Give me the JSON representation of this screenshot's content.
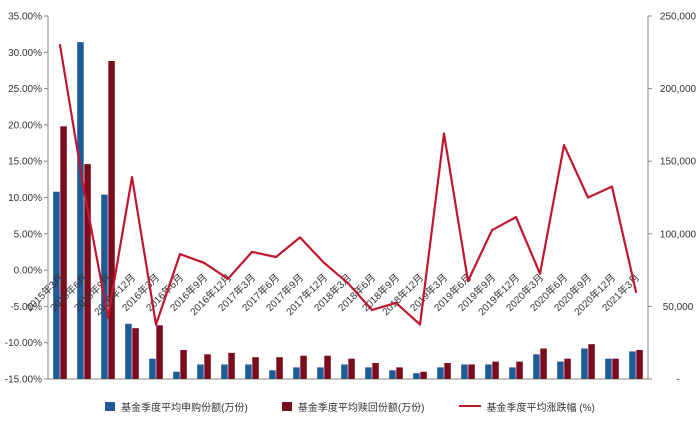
{
  "chart_data": {
    "type": "bar",
    "categories": [
      "2015年3月",
      "2015年6月",
      "2015年9月",
      "2015年12月",
      "2016年3月",
      "2016年6月",
      "2016年9月",
      "2016年12月",
      "2017年3月",
      "2017年6月",
      "2017年9月",
      "2017年12月",
      "2018年3月",
      "2018年6月",
      "2018年9月",
      "2018年12月",
      "2019年3月",
      "2019年6月",
      "2019年9月",
      "2019年12月",
      "2020年3月",
      "2020年6月",
      "2020年9月",
      "2020年12月",
      "2021年3月"
    ],
    "series": [
      {
        "name": "基金季度平均申购份额(万份)",
        "axis": "right",
        "color": "#1F5A96",
        "values": [
          129000,
          232000,
          127000,
          38000,
          14000,
          5000,
          10000,
          10000,
          10000,
          6000,
          8000,
          8000,
          10000,
          8000,
          6000,
          4000,
          8000,
          10000,
          10000,
          8000,
          17000,
          12000,
          21000,
          14000,
          19000
        ]
      },
      {
        "name": "基金季度平均赎回份额(万份)",
        "axis": "right",
        "color": "#7A0C1E",
        "values": [
          174000,
          148000,
          219000,
          35000,
          37000,
          20000,
          17000,
          18000,
          15000,
          15000,
          16000,
          16000,
          14000,
          11000,
          8000,
          5000,
          11000,
          10000,
          12000,
          12000,
          21000,
          14000,
          24000,
          14000,
          20000
        ]
      },
      {
        "name": "基金季度平均涨跌幅 (%)",
        "axis": "left",
        "type": "line",
        "color": "#C0172F",
        "values": [
          31.0,
          11.0,
          -6.5,
          12.8,
          -7.5,
          2.2,
          1.0,
          -1.2,
          2.5,
          1.8,
          4.5,
          1.0,
          -1.8,
          -5.5,
          -4.5,
          -7.5,
          18.8,
          -1.5,
          5.5,
          7.3,
          -0.5,
          17.2,
          10.0,
          11.5,
          -3.0
        ]
      }
    ],
    "left_axis": {
      "ylim": [
        -15,
        35
      ],
      "ticks": [
        35,
        30,
        25,
        20,
        15,
        10,
        5,
        0,
        -5,
        -10,
        -15
      ],
      "tick_labels": [
        "35.00%",
        "30.00%",
        "25.00%",
        "20.00%",
        "15.00%",
        "10.00%",
        "5.00%",
        "0.00%",
        "-5.00%",
        "-10.00%",
        "-15.00%"
      ]
    },
    "right_axis": {
      "ylim": [
        0,
        250000
      ],
      "ticks": [
        250000,
        200000,
        150000,
        100000,
        50000,
        0
      ],
      "tick_labels": [
        "250,000",
        "200,000",
        "150,000",
        "100,000",
        "50,000",
        "-"
      ]
    },
    "grid": false,
    "legend": "bottom"
  },
  "legend": {
    "items": [
      {
        "label": "基金季度平均申购份额(万份)",
        "color": "#1F5A96",
        "kind": "bar"
      },
      {
        "label": "基金季度平均赎回份额(万份)",
        "color": "#7A0C1E",
        "kind": "bar"
      },
      {
        "label": "基金季度平均涨跌幅 (%)",
        "color": "#C0172F",
        "kind": "line"
      }
    ]
  }
}
